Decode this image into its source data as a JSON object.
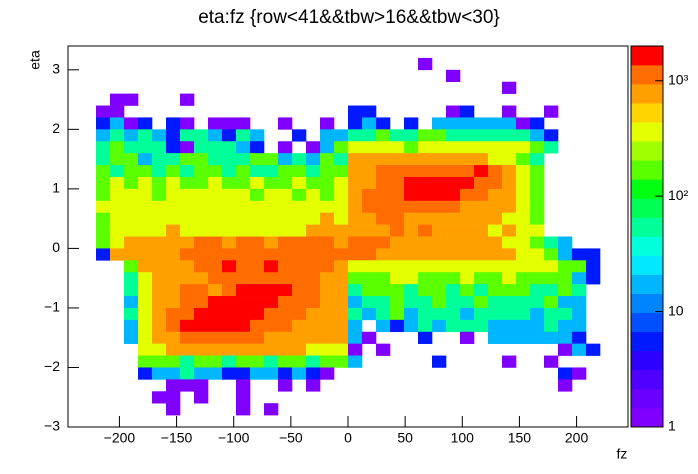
{
  "chart_data": {
    "type": "heatmap",
    "title": "eta:fz {row<41&&tbw>16&&tbw<30}",
    "xlabel": "fz",
    "ylabel": "eta",
    "xlim": [
      -245,
      245
    ],
    "ylim": [
      -3,
      3.4
    ],
    "xticks": [
      {
        "value": -200,
        "label": "−200"
      },
      {
        "value": -150,
        "label": "−150"
      },
      {
        "value": -100,
        "label": "−100"
      },
      {
        "value": -50,
        "label": "−50"
      },
      0,
      50,
      100,
      150,
      200
    ],
    "yticks": [
      {
        "value": -3,
        "label": "−3"
      },
      {
        "value": -2,
        "label": "−2"
      },
      {
        "value": -1,
        "label": "−1"
      },
      0,
      1,
      2,
      3
    ],
    "zlim": [
      1,
      2000
    ],
    "log_z": true,
    "zticks": [
      1,
      10,
      {
        "value": 100,
        "label": "10²"
      },
      {
        "value": 1000,
        "label": "10³"
      }
    ],
    "palette": [
      "#7f00ff",
      "#6a00ff",
      "#4f00ff",
      "#2d00ff",
      "#0019ff",
      "#0050ff",
      "#0085ff",
      "#00b6ff",
      "#00e7ff",
      "#00ffdb",
      "#00ff99",
      "#00ff55",
      "#00ff12",
      "#5aff00",
      "#a0ff00",
      "#e3ff00",
      "#ffd400",
      "#ffa000",
      "#ff6c00",
      "#ff0000"
    ],
    "z": [
      [
        0,
        0,
        0,
        0,
        0,
        0,
        0,
        0,
        0,
        0,
        0,
        0,
        0,
        0,
        0,
        0,
        0,
        0,
        0,
        0,
        0,
        0,
        0,
        0,
        0,
        0,
        0,
        0,
        0,
        0,
        0,
        0,
        0,
        0,
        0,
        0,
        0,
        0,
        0,
        0
      ],
      [
        0,
        0,
        0,
        0,
        0,
        0,
        0,
        0,
        0,
        0,
        0,
        0,
        0,
        0,
        0,
        0,
        0,
        0,
        0,
        0,
        0,
        0,
        0,
        0,
        0,
        1,
        0,
        0,
        0,
        0,
        0,
        0,
        0,
        0,
        0,
        0,
        0,
        0,
        0,
        0
      ],
      [
        0,
        0,
        0,
        0,
        0,
        0,
        0,
        0,
        0,
        0,
        0,
        0,
        0,
        0,
        0,
        0,
        0,
        0,
        0,
        0,
        0,
        0,
        0,
        0,
        0,
        0,
        0,
        1,
        0,
        0,
        0,
        0,
        0,
        0,
        0,
        0,
        0,
        0,
        0,
        0
      ],
      [
        0,
        0,
        0,
        0,
        0,
        0,
        0,
        0,
        0,
        0,
        0,
        0,
        0,
        0,
        0,
        0,
        0,
        0,
        0,
        0,
        0,
        0,
        0,
        0,
        0,
        0,
        0,
        0,
        0,
        0,
        0,
        1,
        0,
        0,
        0,
        0,
        0,
        0,
        0,
        0
      ],
      [
        0,
        0,
        0,
        1,
        1,
        0,
        0,
        0,
        1,
        0,
        0,
        0,
        0,
        0,
        0,
        0,
        0,
        0,
        0,
        0,
        0,
        0,
        0,
        0,
        0,
        0,
        0,
        0,
        0,
        0,
        0,
        0,
        0,
        0,
        0,
        0,
        0,
        0,
        0,
        0
      ],
      [
        0,
        0,
        1,
        1,
        0,
        0,
        0,
        0,
        0,
        0,
        0,
        0,
        0,
        0,
        0,
        0,
        0,
        0,
        0,
        0,
        5,
        5,
        0,
        0,
        0,
        0,
        0,
        1,
        5,
        0,
        0,
        1,
        0,
        0,
        1,
        0,
        0,
        0,
        0,
        0
      ],
      [
        0,
        0,
        5,
        20,
        1,
        5,
        0,
        5,
        1,
        0,
        1,
        1,
        1,
        0,
        0,
        1,
        0,
        0,
        1,
        0,
        5,
        20,
        5,
        0,
        5,
        0,
        20,
        20,
        20,
        20,
        20,
        20,
        1,
        5,
        0,
        0,
        0,
        0,
        0,
        0
      ],
      [
        0,
        0,
        20,
        60,
        20,
        60,
        20,
        5,
        60,
        60,
        20,
        5,
        60,
        20,
        0,
        0,
        5,
        0,
        20,
        20,
        60,
        60,
        150,
        60,
        60,
        150,
        150,
        60,
        60,
        60,
        60,
        60,
        60,
        20,
        5,
        0,
        0,
        0,
        0,
        0
      ],
      [
        0,
        0,
        60,
        150,
        60,
        60,
        60,
        5,
        1,
        60,
        60,
        60,
        20,
        5,
        0,
        1,
        0,
        1,
        20,
        150,
        400,
        400,
        400,
        400,
        150,
        400,
        400,
        400,
        400,
        400,
        400,
        400,
        400,
        150,
        60,
        0,
        0,
        0,
        0,
        0
      ],
      [
        0,
        0,
        60,
        150,
        150,
        20,
        60,
        60,
        150,
        150,
        60,
        60,
        60,
        150,
        150,
        20,
        60,
        20,
        150,
        60,
        700,
        700,
        700,
        700,
        700,
        700,
        700,
        700,
        700,
        700,
        400,
        400,
        150,
        60,
        0,
        0,
        0,
        0,
        0,
        0
      ],
      [
        0,
        0,
        150,
        60,
        150,
        150,
        60,
        150,
        60,
        150,
        150,
        60,
        150,
        60,
        60,
        150,
        150,
        60,
        150,
        150,
        700,
        700,
        1000,
        1000,
        1000,
        1000,
        1000,
        1000,
        1000,
        1500,
        1000,
        700,
        400,
        150,
        0,
        0,
        0,
        0,
        0,
        0
      ],
      [
        0,
        0,
        150,
        400,
        150,
        400,
        150,
        400,
        150,
        150,
        400,
        150,
        150,
        400,
        150,
        150,
        400,
        150,
        150,
        400,
        700,
        700,
        1000,
        1000,
        1500,
        1500,
        1500,
        1500,
        1500,
        1000,
        1000,
        700,
        400,
        150,
        0,
        0,
        0,
        0,
        0,
        0
      ],
      [
        0,
        0,
        150,
        400,
        400,
        400,
        150,
        400,
        400,
        400,
        400,
        400,
        400,
        150,
        400,
        400,
        150,
        400,
        150,
        400,
        700,
        1000,
        1000,
        1000,
        1500,
        1500,
        1500,
        1500,
        1000,
        1000,
        700,
        700,
        400,
        150,
        0,
        0,
        0,
        0,
        0,
        0
      ],
      [
        0,
        0,
        400,
        400,
        400,
        400,
        400,
        400,
        400,
        400,
        400,
        400,
        400,
        400,
        400,
        400,
        400,
        400,
        400,
        400,
        700,
        1000,
        1000,
        1000,
        1000,
        1000,
        1000,
        1000,
        700,
        700,
        700,
        700,
        400,
        150,
        0,
        0,
        0,
        0,
        0,
        0
      ],
      [
        0,
        0,
        150,
        400,
        400,
        400,
        400,
        400,
        400,
        400,
        400,
        400,
        400,
        400,
        400,
        400,
        400,
        400,
        700,
        400,
        700,
        700,
        1000,
        1000,
        700,
        700,
        700,
        700,
        700,
        700,
        700,
        400,
        400,
        150,
        0,
        0,
        0,
        0,
        0,
        0
      ],
      [
        0,
        0,
        150,
        400,
        400,
        400,
        400,
        700,
        400,
        400,
        400,
        400,
        400,
        400,
        400,
        400,
        400,
        700,
        700,
        700,
        700,
        700,
        700,
        1000,
        700,
        1000,
        700,
        700,
        700,
        700,
        400,
        700,
        400,
        400,
        0,
        0,
        0,
        0,
        0,
        0
      ],
      [
        0,
        0,
        150,
        400,
        700,
        700,
        700,
        700,
        700,
        1000,
        1000,
        700,
        1000,
        1000,
        700,
        1000,
        1000,
        1000,
        1000,
        700,
        1000,
        1000,
        1000,
        700,
        700,
        700,
        700,
        700,
        700,
        700,
        700,
        400,
        400,
        150,
        60,
        20,
        0,
        0,
        0,
        0
      ],
      [
        0,
        0,
        5,
        700,
        700,
        700,
        700,
        700,
        1000,
        1000,
        1000,
        1000,
        1000,
        1000,
        1000,
        1000,
        1000,
        1000,
        1000,
        1000,
        1000,
        1000,
        700,
        700,
        700,
        700,
        700,
        700,
        700,
        700,
        700,
        700,
        400,
        400,
        150,
        20,
        5,
        5,
        0,
        0
      ],
      [
        0,
        0,
        0,
        0,
        150,
        700,
        700,
        700,
        700,
        1000,
        1000,
        1500,
        1000,
        1000,
        1500,
        1000,
        1000,
        1000,
        1000,
        700,
        400,
        400,
        400,
        400,
        400,
        400,
        400,
        400,
        400,
        400,
        400,
        400,
        400,
        400,
        400,
        150,
        150,
        5,
        0,
        0
      ],
      [
        0,
        0,
        0,
        0,
        60,
        400,
        700,
        700,
        700,
        700,
        1000,
        1000,
        1000,
        1000,
        1000,
        1000,
        1000,
        1000,
        700,
        700,
        150,
        150,
        150,
        400,
        400,
        150,
        150,
        150,
        400,
        150,
        150,
        400,
        150,
        150,
        150,
        150,
        20,
        5,
        0,
        0
      ],
      [
        0,
        0,
        0,
        0,
        60,
        400,
        700,
        700,
        1000,
        1000,
        700,
        1000,
        1500,
        1500,
        1500,
        1500,
        1000,
        1000,
        700,
        700,
        60,
        150,
        150,
        150,
        60,
        150,
        150,
        60,
        150,
        60,
        150,
        150,
        150,
        60,
        60,
        150,
        60,
        0,
        0,
        0
      ],
      [
        0,
        0,
        0,
        0,
        20,
        400,
        700,
        700,
        1000,
        1000,
        1500,
        1500,
        1500,
        1500,
        1500,
        1000,
        1000,
        1000,
        700,
        700,
        20,
        60,
        60,
        150,
        60,
        60,
        150,
        60,
        60,
        150,
        60,
        60,
        60,
        60,
        150,
        20,
        20,
        0,
        0,
        0
      ],
      [
        0,
        0,
        0,
        0,
        60,
        400,
        700,
        1000,
        1000,
        1500,
        1500,
        1500,
        1500,
        1500,
        1000,
        1000,
        1000,
        700,
        700,
        700,
        60,
        20,
        60,
        150,
        20,
        60,
        60,
        60,
        20,
        60,
        60,
        60,
        60,
        20,
        60,
        60,
        20,
        0,
        0,
        0
      ],
      [
        0,
        0,
        0,
        0,
        20,
        400,
        700,
        1000,
        1500,
        1500,
        1500,
        1500,
        1500,
        1000,
        1000,
        1000,
        700,
        700,
        700,
        700,
        20,
        0,
        20,
        5,
        20,
        60,
        20,
        60,
        60,
        60,
        20,
        20,
        20,
        20,
        60,
        20,
        20,
        0,
        0,
        0
      ],
      [
        0,
        0,
        0,
        0,
        20,
        400,
        700,
        700,
        1000,
        1000,
        1000,
        1000,
        1000,
        1000,
        700,
        700,
        700,
        700,
        700,
        700,
        20,
        1,
        0,
        0,
        0,
        5,
        0,
        0,
        1,
        0,
        20,
        20,
        20,
        20,
        20,
        20,
        5,
        0,
        0,
        0
      ],
      [
        0,
        0,
        0,
        0,
        0,
        400,
        400,
        700,
        700,
        700,
        700,
        700,
        700,
        700,
        700,
        700,
        700,
        400,
        400,
        400,
        1,
        0,
        1,
        0,
        0,
        0,
        0,
        0,
        0,
        0,
        0,
        0,
        0,
        0,
        0,
        1,
        20,
        5,
        0,
        0
      ],
      [
        0,
        0,
        0,
        0,
        0,
        150,
        150,
        150,
        60,
        150,
        150,
        60,
        150,
        150,
        60,
        150,
        150,
        60,
        150,
        150,
        20,
        0,
        0,
        0,
        0,
        0,
        5,
        0,
        0,
        0,
        0,
        1,
        0,
        0,
        1,
        0,
        0,
        0,
        0,
        0
      ],
      [
        0,
        0,
        0,
        0,
        0,
        5,
        20,
        20,
        60,
        20,
        20,
        5,
        5,
        20,
        20,
        5,
        20,
        5,
        1,
        0,
        0,
        0,
        0,
        0,
        0,
        0,
        0,
        0,
        0,
        0,
        0,
        0,
        0,
        0,
        0,
        5,
        1,
        0,
        0,
        0
      ],
      [
        0,
        0,
        0,
        0,
        0,
        0,
        0,
        1,
        1,
        1,
        0,
        0,
        1,
        0,
        0,
        1,
        0,
        1,
        0,
        0,
        0,
        0,
        0,
        0,
        0,
        0,
        0,
        0,
        0,
        0,
        0,
        0,
        0,
        0,
        0,
        1,
        0,
        0,
        0,
        0
      ],
      [
        0,
        0,
        0,
        0,
        0,
        0,
        1,
        1,
        0,
        1,
        0,
        0,
        1,
        0,
        0,
        0,
        0,
        0,
        0,
        0,
        0,
        0,
        0,
        0,
        0,
        0,
        0,
        0,
        0,
        0,
        0,
        0,
        0,
        0,
        0,
        0,
        0,
        0,
        0,
        0
      ],
      [
        0,
        0,
        0,
        0,
        0,
        0,
        0,
        1,
        0,
        0,
        0,
        0,
        1,
        0,
        1,
        0,
        0,
        0,
        0,
        0,
        0,
        0,
        0,
        0,
        0,
        0,
        0,
        0,
        0,
        0,
        0,
        0,
        0,
        0,
        0,
        0,
        0,
        0,
        0,
        0
      ],
      [
        0,
        0,
        0,
        0,
        0,
        0,
        0,
        0,
        0,
        0,
        0,
        0,
        0,
        0,
        0,
        0,
        0,
        0,
        0,
        0,
        0,
        0,
        0,
        0,
        0,
        0,
        0,
        0,
        0,
        0,
        0,
        0,
        0,
        0,
        0,
        0,
        0,
        0,
        0,
        0
      ]
    ]
  }
}
